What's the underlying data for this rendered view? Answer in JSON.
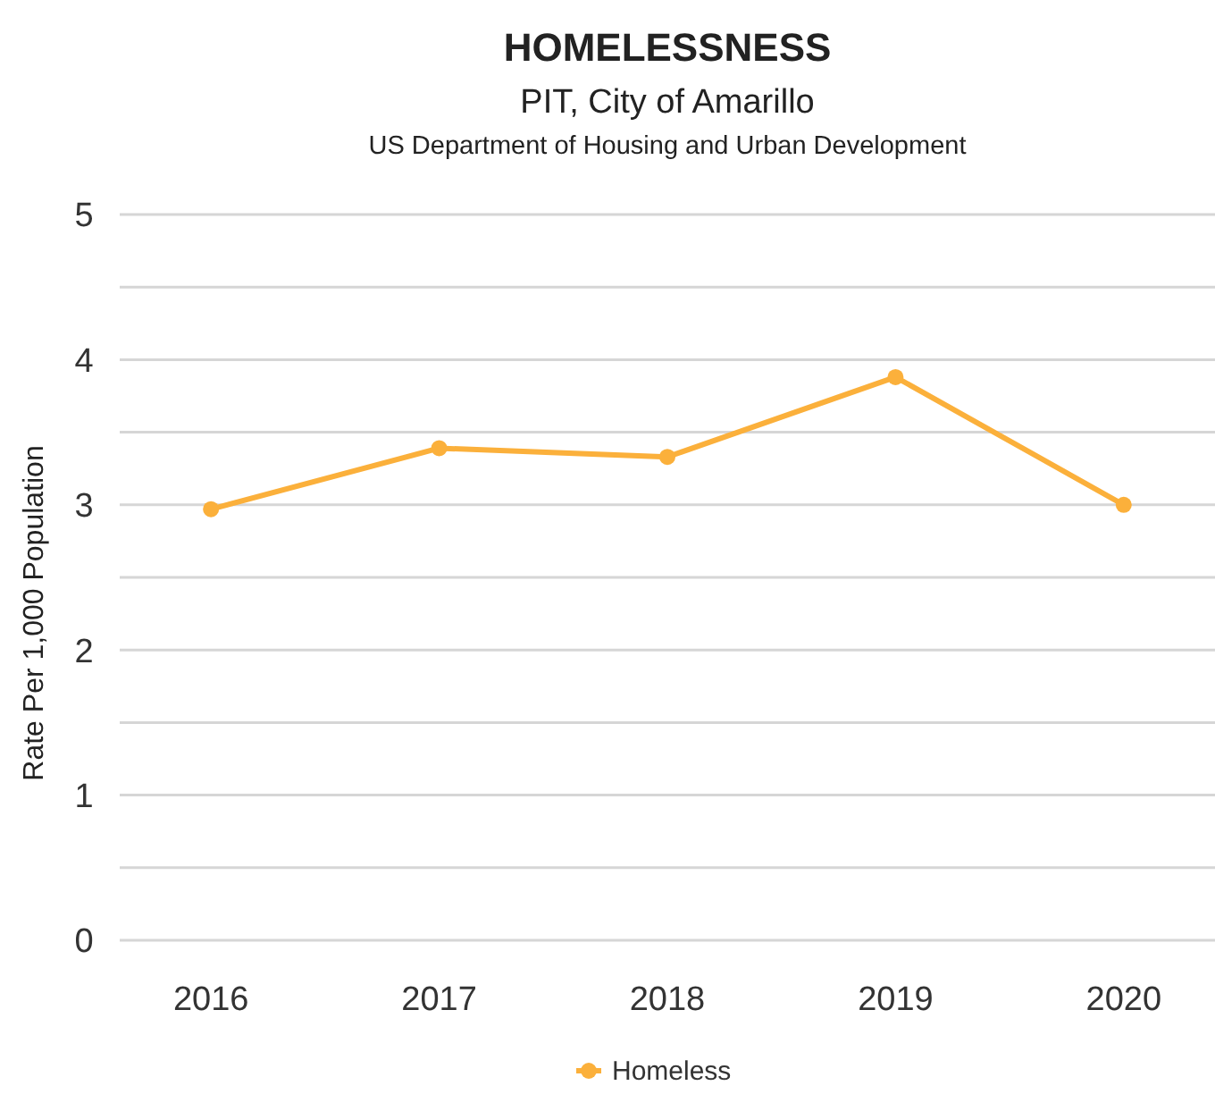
{
  "chart_data": {
    "type": "line",
    "title": "HOMELESSNESS",
    "subtitle": "PIT, City of Amarillo",
    "annotations": [
      "US Department of Housing and Urban Development"
    ],
    "ylabel": "Rate Per 1,000 Population",
    "categories": [
      "2016",
      "2017",
      "2018",
      "2019",
      "2020"
    ],
    "series": [
      {
        "name": "Homeless",
        "color": "#fbb03b",
        "values": [
          2.97,
          3.39,
          3.33,
          3.88,
          3.0
        ]
      }
    ],
    "ylim": [
      0,
      5
    ],
    "yticks": [
      0,
      {
        "value": 0.5,
        "label": null
      },
      1,
      {
        "value": 1.5,
        "label": null
      },
      2,
      {
        "value": 2.5,
        "label": null
      },
      3,
      {
        "value": 3.5,
        "label": null
      },
      4,
      {
        "value": 4.5,
        "label": null
      },
      5
    ],
    "grid": "y",
    "legend": "bottom",
    "marker": "circle",
    "line_style": "solid"
  }
}
